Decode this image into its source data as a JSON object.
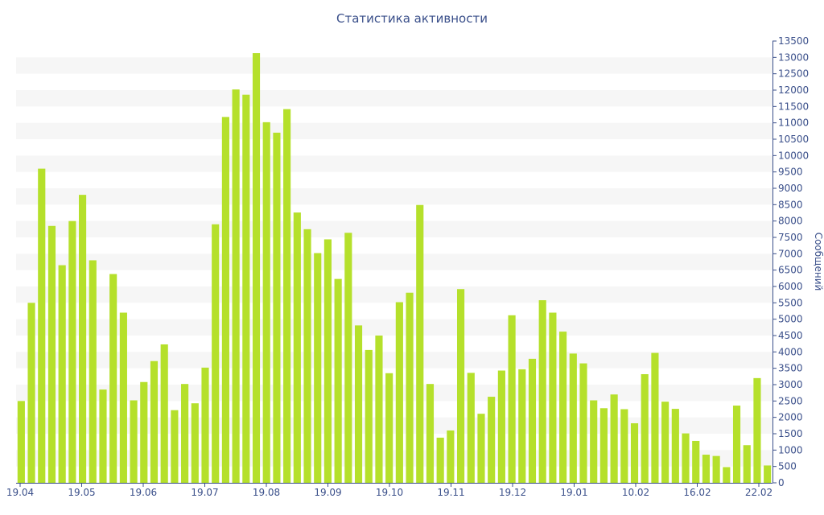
{
  "chart_data": {
    "type": "bar",
    "title": "Статистика активности",
    "xlabel": "",
    "ylabel": "Сообщений",
    "ylim": [
      0,
      13500
    ],
    "ytick_step": 500,
    "grid": "alternating bands",
    "x_tick_labels": [
      "19.04",
      "19.05",
      "19.06",
      "19.07",
      "19.08",
      "19.09",
      "19.10",
      "19.11",
      "19.12",
      "19.01",
      "10.02",
      "16.02",
      "22.02"
    ],
    "bar_color": "#b5e02b",
    "values": [
      2500,
      5500,
      9600,
      7850,
      6650,
      8000,
      8800,
      6800,
      2850,
      6380,
      5200,
      2520,
      3080,
      3720,
      4230,
      2220,
      3020,
      2430,
      3520,
      7900,
      11180,
      12020,
      11860,
      13130,
      11020,
      10700,
      11420,
      8260,
      7750,
      7020,
      7440,
      6230,
      7640,
      4810,
      4060,
      4500,
      3350,
      5520,
      5810,
      8490,
      3020,
      1380,
      1600,
      5920,
      3360,
      2110,
      2630,
      3430,
      5120,
      3470,
      3790,
      5580,
      5200,
      4620,
      3950,
      3650,
      2520,
      2280,
      2700,
      2250,
      1820,
      3320,
      3970,
      2480,
      2260,
      1510,
      1280,
      860,
      820,
      480,
      2360,
      1150,
      3200,
      530
    ]
  }
}
